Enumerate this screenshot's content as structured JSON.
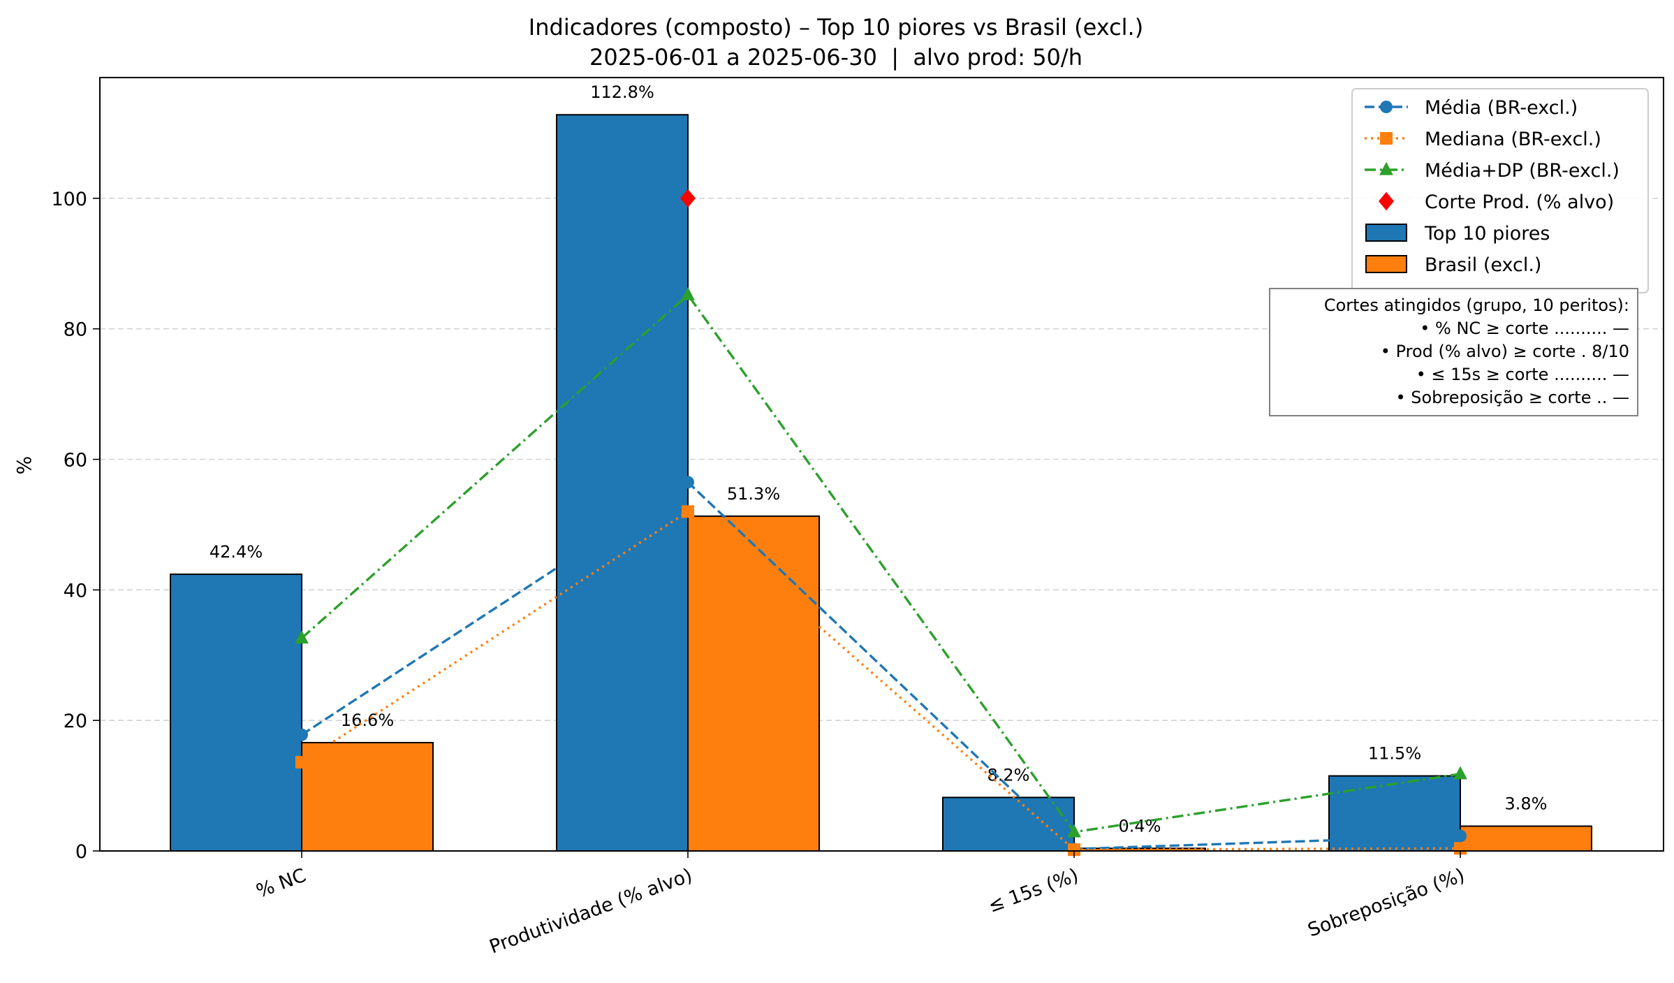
{
  "chart_data": {
    "type": "bar",
    "title": "Indicadores (composto) – Top 10 piores vs Brasil (excl.)",
    "subtitle": "2025-06-01 a 2025-06-30  |  alvo prod: 50/h",
    "xlabel": "",
    "ylabel": "%",
    "ylim": [
      0,
      118.5
    ],
    "yticks": [
      0,
      20,
      40,
      60,
      80,
      100
    ],
    "grid": "y-dashed",
    "legend_position": "top-right",
    "categories": [
      "% NC",
      "Produtividade (% alvo)",
      "≤ 15s (%)",
      "Sobreposição (%)"
    ],
    "series": [
      {
        "name": "Top 10 piores",
        "kind": "bar",
        "color": "#1f77b4",
        "values": [
          42.4,
          112.8,
          8.2,
          11.5
        ],
        "labels": [
          "42.4%",
          "112.8%",
          "8.2%",
          "11.5%"
        ]
      },
      {
        "name": "Brasil (excl.)",
        "kind": "bar",
        "color": "#ff7f0e",
        "values": [
          16.6,
          51.3,
          0.4,
          3.8
        ],
        "labels": [
          "16.6%",
          "51.3%",
          "0.4%",
          "3.8%"
        ]
      }
    ],
    "lines": [
      {
        "name": "Média (BR-excl.)",
        "color": "#1f77b4",
        "style": "dashed",
        "marker": "circle",
        "values": [
          17.8,
          56.5,
          0.3,
          2.3
        ]
      },
      {
        "name": "Mediana (BR-excl.)",
        "color": "#ff7f0e",
        "style": "dotted",
        "marker": "square",
        "values": [
          13.6,
          52.0,
          0.2,
          0.4
        ]
      },
      {
        "name": "Média+DP (BR-excl.)",
        "color": "#2ca02c",
        "style": "dashdot",
        "marker": "triangle",
        "values": [
          32.6,
          85.2,
          2.9,
          11.8
        ]
      }
    ],
    "markers": [
      {
        "name": "Corte Prod. (% alvo)",
        "color": "#ff0000",
        "marker": "diamond",
        "category": 1,
        "value": 100
      }
    ],
    "annotation": {
      "lines": [
        "Cortes atingidos (grupo, 10 peritos):",
        "• % NC ≥ corte .......... —",
        "• Prod (% alvo) ≥ corte . 8/10",
        "• ≤ 15s ≥ corte .......... —",
        "• Sobreposição ≥ corte .. —"
      ]
    }
  }
}
